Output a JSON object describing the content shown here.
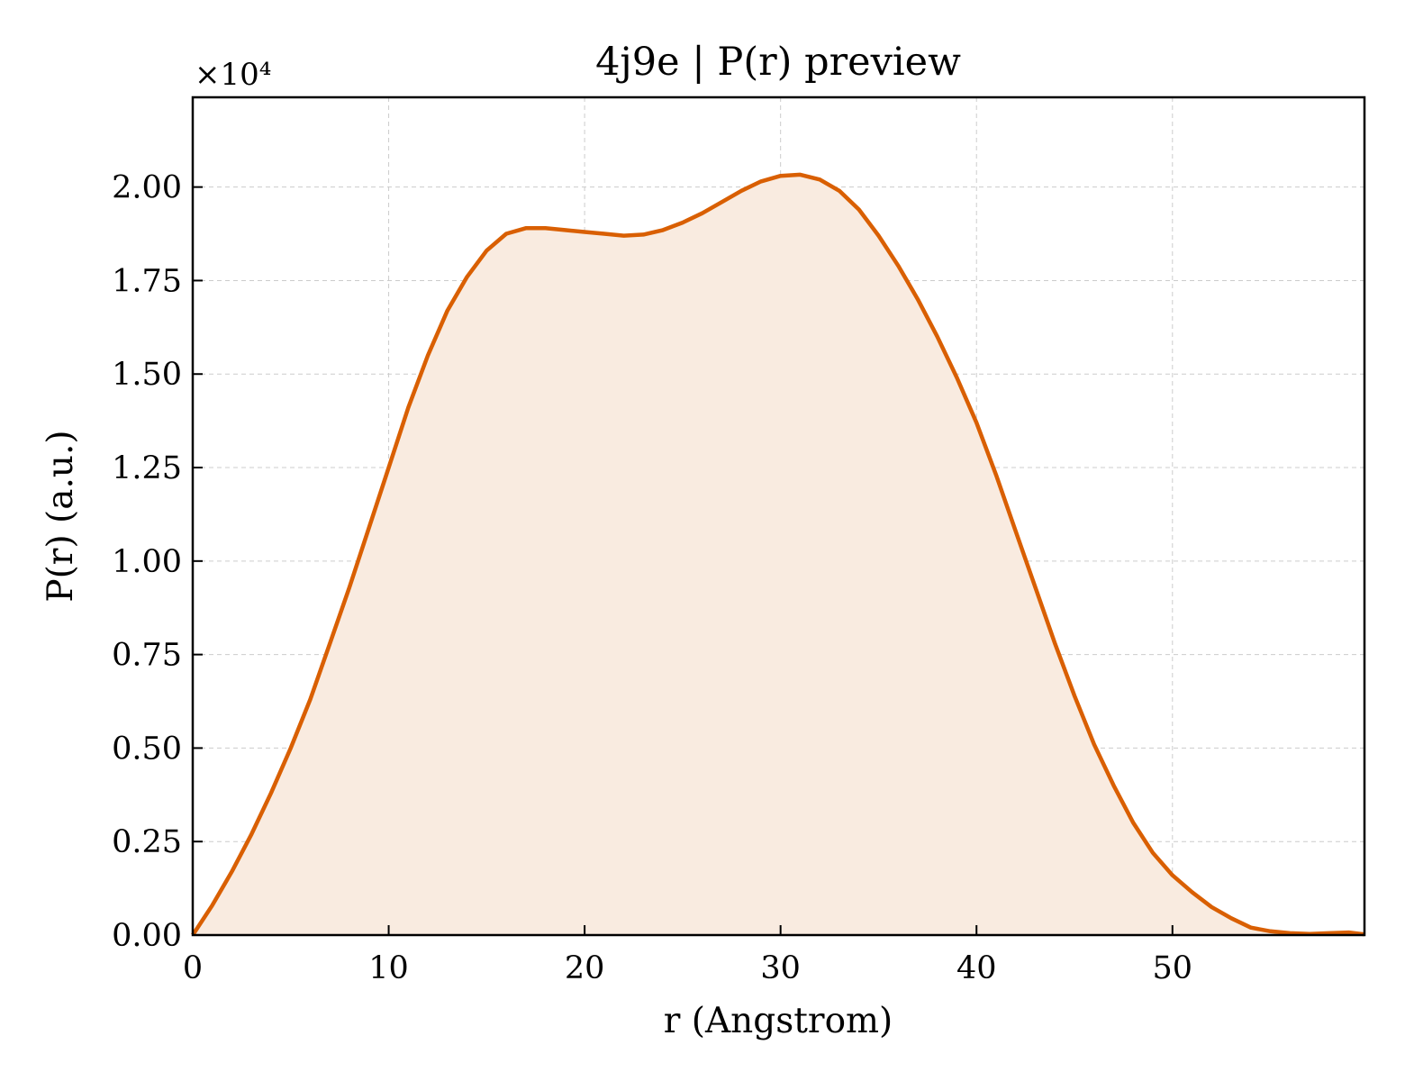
{
  "chart_data": {
    "type": "area",
    "title": "4j9e | P(r) preview",
    "xlabel": "r (Angstrom)",
    "ylabel": "P(r) (a.u.)",
    "y_offset_label": "×10⁴",
    "xlim": [
      0,
      59.8
    ],
    "ylim": [
      0,
      2.24
    ],
    "xticks": [
      0,
      10,
      20,
      30,
      40,
      50
    ],
    "xtick_labels": [
      "0",
      "10",
      "20",
      "30",
      "40",
      "50"
    ],
    "yticks": [
      0,
      0.25,
      0.5,
      0.75,
      1.0,
      1.25,
      1.5,
      1.75,
      2.0
    ],
    "ytick_labels": [
      "0.00",
      "0.25",
      "0.50",
      "0.75",
      "1.00",
      "1.25",
      "1.50",
      "1.75",
      "2.00"
    ],
    "grid": true,
    "line_color": "#d95f02",
    "fill_color": "#f9ebe0",
    "series": [
      {
        "x": [
          0,
          1,
          2,
          3,
          4,
          5,
          6,
          7,
          8,
          9,
          10,
          11,
          12,
          13,
          14,
          15,
          16,
          17,
          18,
          19,
          20,
          21,
          22,
          23,
          24,
          25,
          26,
          27,
          28,
          29,
          30,
          31,
          32,
          33,
          34,
          35,
          36,
          37,
          38,
          39,
          40,
          41,
          42,
          43,
          44,
          45,
          46,
          47,
          48,
          49,
          50,
          51,
          52,
          53,
          54,
          55,
          56,
          57,
          58,
          59,
          59.8
        ],
        "y": [
          0.0,
          0.08,
          0.17,
          0.27,
          0.38,
          0.5,
          0.63,
          0.78,
          0.93,
          1.09,
          1.25,
          1.41,
          1.55,
          1.67,
          1.76,
          1.83,
          1.875,
          1.89,
          1.89,
          1.885,
          1.88,
          1.875,
          1.87,
          1.873,
          1.885,
          1.905,
          1.93,
          1.96,
          1.99,
          2.015,
          2.03,
          2.033,
          2.02,
          1.99,
          1.94,
          1.87,
          1.79,
          1.7,
          1.6,
          1.49,
          1.37,
          1.23,
          1.08,
          0.93,
          0.78,
          0.64,
          0.51,
          0.4,
          0.3,
          0.22,
          0.16,
          0.115,
          0.075,
          0.045,
          0.02,
          0.01,
          0.005,
          0.003,
          0.005,
          0.007,
          0.002
        ]
      }
    ]
  }
}
